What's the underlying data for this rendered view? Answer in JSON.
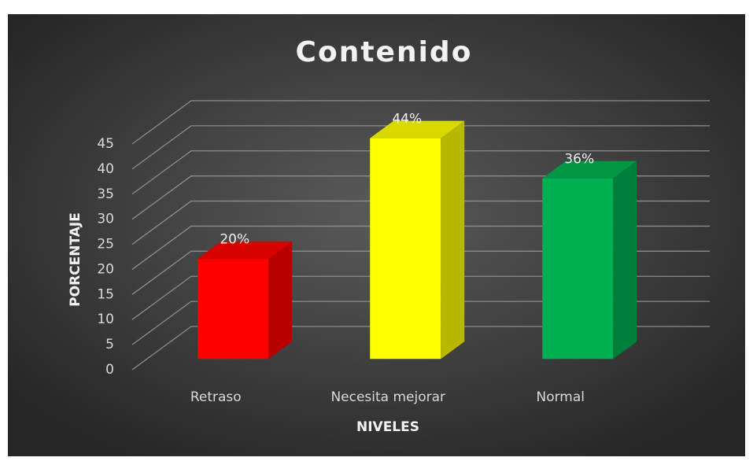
{
  "chart_data": {
    "type": "bar3d",
    "title": "Contenido",
    "x_label": "NIVELES",
    "y_label": "PORCENTAJE",
    "categories": [
      "Retraso",
      "Necesita mejorar",
      "Normal"
    ],
    "values": [
      20,
      44,
      36
    ],
    "value_labels": [
      "20%",
      "44%",
      "36%"
    ],
    "colors": [
      "#ff0000",
      "#ffff00",
      "#00b050"
    ],
    "ylim": [
      0,
      45
    ],
    "yticks": [
      0,
      5,
      10,
      15,
      20,
      25,
      30,
      35,
      40,
      45
    ],
    "grid": true
  }
}
